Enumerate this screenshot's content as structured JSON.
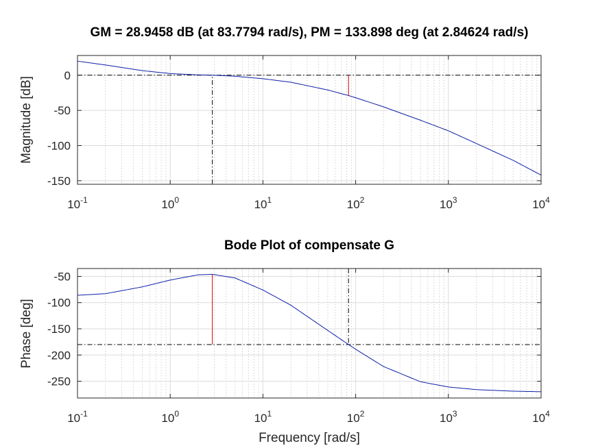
{
  "chart_data": [
    {
      "type": "line",
      "title": "GM = 28.9458 dB (at 83.7794 rad/s),   PM = 133.898 deg (at 2.84624 rad/s)",
      "ylabel": "Magnitude [dB]",
      "xlabel": "",
      "xscale": "log",
      "xlim": [
        0.1,
        10000
      ],
      "ylim": [
        -155,
        28
      ],
      "x_ticks": [
        {
          "base": "10",
          "exp": "-1"
        },
        {
          "base": "10",
          "exp": "0"
        },
        {
          "base": "10",
          "exp": "1"
        },
        {
          "base": "10",
          "exp": "2"
        },
        {
          "base": "10",
          "exp": "3"
        },
        {
          "base": "10",
          "exp": "4"
        }
      ],
      "y_ticks": [
        "0",
        "-50",
        "-100",
        "-150"
      ],
      "y_tick_values": [
        0,
        -50,
        -100,
        -150
      ],
      "grid": true,
      "series": [
        {
          "x": [
            0.1,
            0.2,
            0.5,
            1,
            2,
            2.84624,
            5,
            10,
            20,
            50,
            83.7794,
            100,
            200,
            500,
            1000,
            2000,
            5000,
            10000
          ],
          "y": [
            20,
            14.5,
            6.5,
            2.3,
            0.5,
            0,
            -1.5,
            -5,
            -10,
            -21,
            -28.9458,
            -32,
            -45,
            -64,
            -79,
            -97,
            -121,
            -142
          ],
          "color": "#0b1fa6"
        }
      ],
      "reference_lines": [
        {
          "orientation": "horizontal",
          "value": 0,
          "style": "dash-dot",
          "color": "#000000"
        },
        {
          "orientation": "vertical",
          "value": 2.84624,
          "from": -155,
          "to": 0,
          "style": "dash-dot",
          "color": "#000000"
        }
      ],
      "margin_markers": [
        {
          "x": 83.7794,
          "from": 0,
          "to": -28.9458,
          "color": "#d40000"
        }
      ]
    },
    {
      "type": "line",
      "title": "Bode Plot of compensate G",
      "ylabel": "Phase [deg]",
      "xlabel": "Frequency [rad/s]",
      "xscale": "log",
      "xlim": [
        0.1,
        10000
      ],
      "ylim": [
        -282,
        -35
      ],
      "x_ticks": [
        {
          "base": "10",
          "exp": "-1"
        },
        {
          "base": "10",
          "exp": "0"
        },
        {
          "base": "10",
          "exp": "1"
        },
        {
          "base": "10",
          "exp": "2"
        },
        {
          "base": "10",
          "exp": "3"
        },
        {
          "base": "10",
          "exp": "4"
        }
      ],
      "y_ticks": [
        "-50",
        "-100",
        "-150",
        "-200",
        "-250"
      ],
      "y_tick_values": [
        -50,
        -100,
        -150,
        -200,
        -250
      ],
      "grid": true,
      "series": [
        {
          "x": [
            0.1,
            0.2,
            0.5,
            1,
            2,
            2.84624,
            5,
            10,
            20,
            50,
            83.7794,
            100,
            200,
            500,
            1000,
            2000,
            5000,
            10000
          ],
          "y": [
            -86,
            -83,
            -70,
            -57,
            -47,
            -46.1,
            -53,
            -76,
            -105,
            -153,
            -180,
            -189,
            -222,
            -251,
            -261,
            -266,
            -269,
            -270
          ],
          "color": "#0b1fa6"
        }
      ],
      "reference_lines": [
        {
          "orientation": "horizontal",
          "value": -180,
          "style": "dash-dot",
          "color": "#000000"
        },
        {
          "orientation": "vertical",
          "value": 83.7794,
          "from": -35,
          "to": -180,
          "style": "dash-dot",
          "color": "#000000"
        }
      ],
      "margin_markers": [
        {
          "x": 2.84624,
          "from": -180,
          "to": -46.1,
          "color": "#d40000"
        }
      ]
    }
  ]
}
